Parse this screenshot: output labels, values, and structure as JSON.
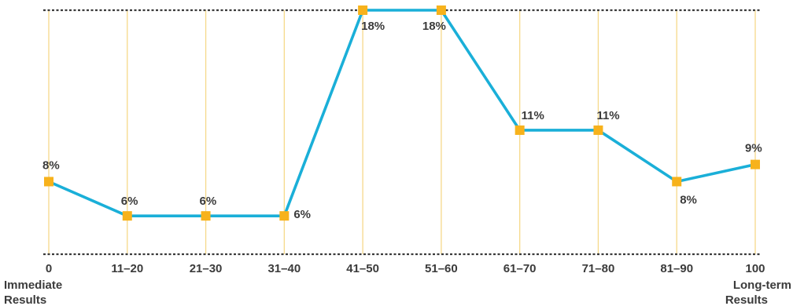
{
  "chart_data": {
    "type": "line",
    "title": "",
    "xlabel": "",
    "ylabel": "",
    "categories": [
      "0",
      "11–20",
      "21–30",
      "31–40",
      "41–50",
      "51–60",
      "61–70",
      "71–80",
      "81–90",
      "100"
    ],
    "values": [
      8,
      6,
      6,
      6,
      18,
      18,
      11,
      11,
      8,
      9
    ],
    "data_labels": [
      "8%",
      "6%",
      "6%",
      "6%",
      "18%",
      "18%",
      "11%",
      "11%",
      "8%",
      "9%"
    ],
    "ylim": [
      5,
      18
    ],
    "start_label": "Immediate Results",
    "end_label": "Long-term Results",
    "grid": "vertical",
    "colors": {
      "line": "#1aafd8",
      "marker": "#f7b21b",
      "gridline": "#f6d98a",
      "boundary": "#3a3a3a",
      "text": "#3b3b3b"
    }
  }
}
